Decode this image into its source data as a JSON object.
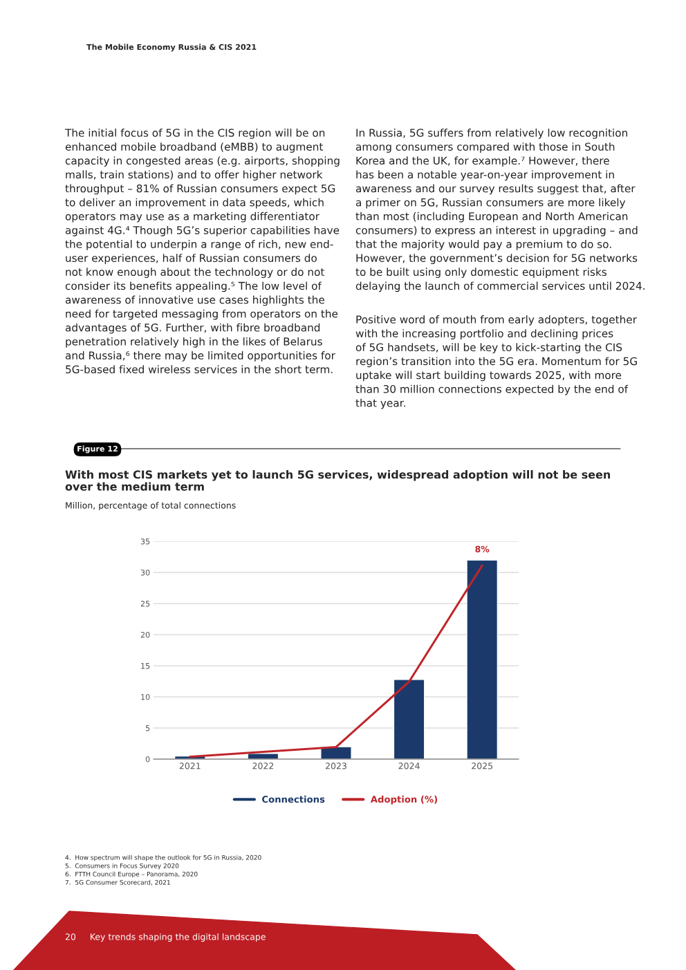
{
  "chart_data": {
    "type": "bar",
    "title": "With most CIS markets yet to launch 5G services, widespread adoption will not be seen\nover the medium term",
    "subtitle": "Million, percentage of total connections",
    "categories": [
      "2021",
      "2022",
      "2023",
      "2024",
      "2025"
    ],
    "series": [
      {
        "name": "Connections",
        "color": "#1b3a6b",
        "values": [
          0.5,
          0.9,
          2.0,
          12.8,
          32.0
        ]
      },
      {
        "name": "Adoption (%)",
        "type": "line",
        "axis": "y2",
        "color": "#c0252a",
        "values": [
          0.1,
          0.3,
          0.5,
          3.2,
          8
        ],
        "value_labels": [
          null,
          null,
          null,
          null,
          "8%"
        ]
      }
    ],
    "ylim": [
      0,
      35
    ],
    "yticks": [
      0,
      5,
      10,
      15,
      20,
      25,
      30,
      35
    ],
    "y2lim": [
      0,
      9
    ],
    "grid": "y",
    "legend": "bottom",
    "annotations": [
      "The Mobile Economy Russia & CIS 2021",
      "The initial focus of 5G in the CIS region will be on\nenhanced mobile broadband (eMBB) to augment\ncapacity in congested areas (e.g. airports, shopping\nmalls, train stations) and to offer higher network\nthroughput – 81% of Russian consumers expect 5G\nto deliver an improvement in data speeds, which\noperators may use as a marketing differentiator\nagainst 4G.⁴ Though 5G’s superior capabilities have\nthe potential to underpin a range of rich, new end-\nuser experiences, half of Russian consumers do\nnot know enough about the technology or do not\nconsider its benefits appealing.⁵ The low level of\nawareness of innovative use cases highlights the\nneed for targeted messaging from operators on the\nadvantages of 5G. Further, with fibre broadband\npenetration relatively high in the likes of Belarus\nand Russia,⁶ there may be limited opportunities for\n5G-based fixed wireless services in the short term.",
      "In Russia, 5G suffers from relatively low recognition\namong consumers compared with those in South\nKorea and the UK, for example.⁷ However, there\nhas been a notable year-on-year improvement in\nawareness and our survey results suggest that, after\na primer on 5G, Russian consumers are more likely\nthan most (including European and North American\nconsumers) to express an interest in upgrading – and\nthat the majority would pay a premium to do so.\nHowever, the government’s decision for 5G networks\nto be built using only domestic equipment risks\ndelaying the launch of commercial services until 2024.",
      "Positive word of mouth from early adopters, together\nwith the increasing portfolio and declining prices\nof 5G handsets, will be key to kick-starting the CIS\nregion’s transition into the 5G era. Momentum for 5G\nuptake will start building towards 2025, with more\nthan 30 million connections expected by the end of\nthat year.",
      "Figure 12",
      "4.  How spectrum will shape the outlook for 5G in Russia, 2020",
      "5.  Consumers in Focus Survey 2020",
      "6.  FTTH Council Europe – Panorama, 2020",
      "7.  5G Consumer Scorecard, 2021",
      "20     Key trends shaping the digital landscape"
    ]
  }
}
